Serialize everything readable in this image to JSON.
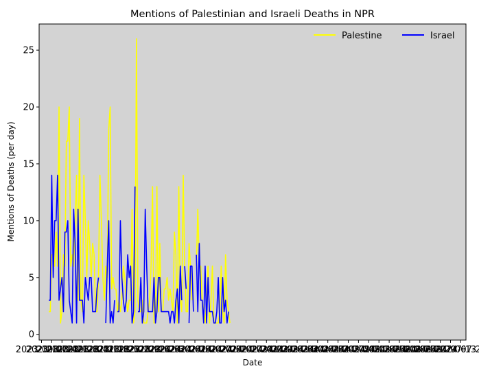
{
  "chart_data": {
    "type": "line",
    "title": "Mentions of Palestinian and Israeli Deaths in NPR",
    "xlabel": "Date",
    "ylabel": "Mentions of Deaths (per day)",
    "ylim": [
      -0.5,
      27.3
    ],
    "yticks": [
      0,
      5,
      10,
      15,
      20,
      25
    ],
    "xtick_labels": [
      "2023-10-07",
      "2023-10-14",
      "2023-10-21",
      "2023-10-28",
      "2023-11-04",
      "2023-11-11",
      "2023-11-18",
      "2023-11-25",
      "2023-12-02",
      "2023-12-09",
      "2023-12-16",
      "2023-12-23",
      "2023-12-30",
      "2024-01-06",
      "2024-01-13",
      "2024-01-20",
      "2024-01-27",
      "2024-02-03",
      "2024-02-10",
      "2024-02-17",
      "2024-02-24",
      "2024-03-02",
      "2024-03-09",
      "2024-03-16",
      "2024-03-23",
      "2024-03-30",
      "2024-04-06",
      "2024-04-13",
      "2024-04-20",
      "2024-04-27",
      "2024-05-04",
      "2024-05-11",
      "2024-05-18",
      "2024-05-25",
      "2024-06-01",
      "2024-06-08",
      "2024-06-15",
      "2024-06-22",
      "2024-06-29",
      "2024-07-06",
      "2024-07-13",
      "2024-07-20"
    ],
    "grid": false,
    "legend": {
      "placement": "upper-right",
      "columns": 2
    },
    "plot_background": "#d3d3d3",
    "series": [
      {
        "name": "Palestine",
        "color": "#ffff00",
        "values": [
          null,
          null,
          null,
          null,
          null,
          2,
          2,
          7,
          7,
          6,
          9,
          6,
          20,
          1,
          2,
          7,
          6,
          17,
          17,
          20,
          6,
          7,
          6,
          10,
          14,
          3,
          19,
          3,
          2,
          14,
          10,
          5,
          10,
          8,
          5,
          8,
          7,
          2,
          2,
          5,
          14,
          10,
          5,
          3,
          6,
          5,
          18,
          20,
          4,
          5,
          4,
          4,
          2,
          3,
          2,
          3,
          6,
          5,
          3,
          2,
          3,
          3,
          11,
          1,
          2,
          26,
          3,
          2,
          2,
          3,
          1,
          1,
          1,
          2,
          3,
          6,
          13,
          1,
          1,
          13,
          2,
          8,
          2,
          2,
          4,
          4,
          5,
          3,
          4,
          3,
          2,
          9,
          7,
          1,
          13,
          3,
          2,
          14,
          6,
          2,
          2,
          8,
          6,
          3,
          null,
          null,
          6,
          11,
          6,
          6,
          3,
          2,
          1,
          3,
          6,
          1,
          3,
          6,
          1,
          1,
          1,
          1,
          2,
          6,
          2,
          1,
          7,
          3,
          2,
          1,
          null
        ],
        "note_first_index": "index 0 = 2023-10-07, one value per day"
      },
      {
        "name": "Israel",
        "color": "#0000ff",
        "values": [
          null,
          null,
          null,
          null,
          null,
          3,
          3,
          14,
          5,
          10,
          10,
          14,
          3,
          4,
          5,
          2,
          9,
          9,
          10,
          3,
          2,
          1,
          11,
          8,
          1,
          11,
          3,
          3,
          3,
          1,
          5,
          4,
          3,
          5,
          5,
          2,
          2,
          2,
          4,
          5,
          null,
          null,
          null,
          null,
          1,
          6,
          10,
          1,
          2,
          1,
          3,
          null,
          2,
          2,
          10,
          5,
          3,
          2,
          3,
          7,
          5,
          6,
          1,
          2,
          13,
          null,
          2,
          2,
          5,
          1,
          2,
          11,
          6,
          2,
          2,
          2,
          2,
          5,
          1,
          2,
          5,
          5,
          2,
          2,
          2,
          2,
          2,
          2,
          1,
          2,
          2,
          1,
          3,
          4,
          1,
          6,
          3,
          null,
          6,
          4,
          null,
          1,
          6,
          6,
          2,
          null,
          7,
          2,
          8,
          3,
          3,
          1,
          6,
          1,
          5,
          2,
          2,
          2,
          1,
          1,
          2,
          5,
          1,
          1,
          5,
          2,
          3,
          1,
          2
        ]
      }
    ]
  }
}
